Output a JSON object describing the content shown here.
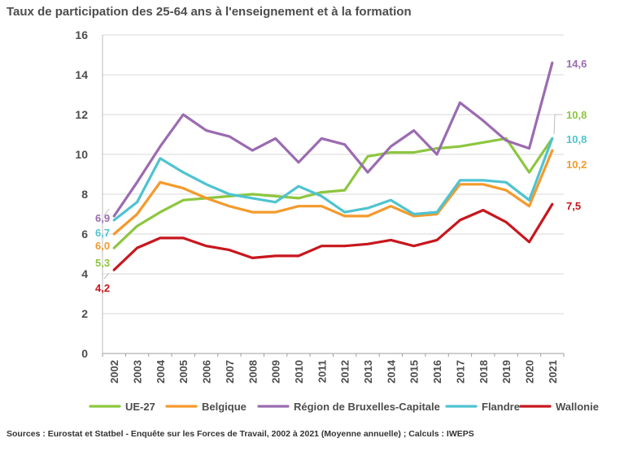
{
  "chart_data": {
    "type": "line",
    "title": "Taux de participation des 25-64 ans à l'enseignement et à la formation",
    "source": "Sources : Eurostat et Statbel - Enquête sur les Forces de Travail, 2002 à 2021 (Moyenne annuelle) ; Calculs : IWEPS",
    "x": [
      "2002",
      "2003",
      "2004",
      "2005",
      "2006",
      "2007",
      "2008",
      "2009",
      "2010",
      "2011",
      "2012",
      "2013",
      "2014",
      "2015",
      "2016",
      "2017",
      "2018",
      "2019",
      "2020",
      "2021"
    ],
    "ylim": [
      0,
      16
    ],
    "yticks": [
      0,
      2,
      4,
      6,
      8,
      10,
      12,
      14,
      16
    ],
    "grid": true,
    "legend_position": "bottom",
    "series": [
      {
        "name": "UE-27",
        "color": "#8dc63f",
        "values": [
          5.3,
          6.4,
          7.1,
          7.7,
          7.8,
          7.9,
          8.0,
          7.9,
          7.8,
          8.1,
          8.2,
          9.9,
          10.1,
          10.1,
          10.3,
          10.4,
          10.6,
          10.8,
          9.1,
          10.8
        ],
        "start_label": "5,3",
        "end_label": "10,8"
      },
      {
        "name": "Belgique",
        "color": "#f39a2c",
        "values": [
          6.0,
          7.0,
          8.6,
          8.3,
          7.8,
          7.4,
          7.1,
          7.1,
          7.4,
          7.4,
          6.9,
          6.9,
          7.4,
          6.9,
          7.0,
          8.5,
          8.5,
          8.2,
          7.4,
          10.2
        ],
        "start_label": "6,0",
        "end_label": "10,2"
      },
      {
        "name": "Région de Bruxelles-Capitale",
        "color": "#9b6bb0",
        "values": [
          6.9,
          8.6,
          10.4,
          12.0,
          11.2,
          10.9,
          10.2,
          10.8,
          9.6,
          10.8,
          10.5,
          9.1,
          10.4,
          11.2,
          10.0,
          12.6,
          11.7,
          10.7,
          10.3,
          14.6
        ],
        "start_label": "6,9",
        "end_label": "14,6"
      },
      {
        "name": "Flandre",
        "color": "#4fc3d0",
        "values": [
          6.7,
          7.6,
          9.8,
          9.1,
          8.5,
          8.0,
          7.8,
          7.6,
          8.4,
          7.9,
          7.1,
          7.3,
          7.7,
          7.0,
          7.1,
          8.7,
          8.7,
          8.6,
          7.7,
          10.8
        ],
        "start_label": "6,7",
        "end_label": "10,8"
      },
      {
        "name": "Wallonie",
        "color": "#c8161d",
        "values": [
          4.2,
          5.3,
          5.8,
          5.8,
          5.4,
          5.2,
          4.8,
          4.9,
          4.9,
          5.4,
          5.4,
          5.5,
          5.7,
          5.4,
          5.7,
          6.7,
          7.2,
          6.6,
          5.6,
          7.5
        ],
        "start_label": "4,2",
        "end_label": "7,5"
      }
    ]
  }
}
